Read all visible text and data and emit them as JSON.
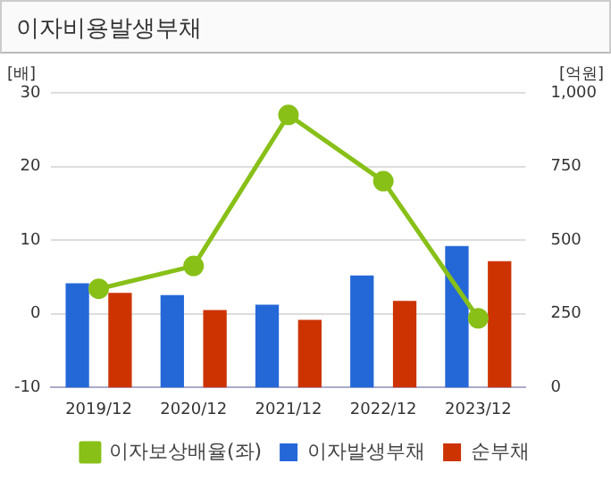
{
  "chart_data": {
    "type": "bar",
    "title": "이자비용발생부채",
    "ylabel": "[배]",
    "y2label": "[억원]",
    "categories": [
      "2019/12",
      "2020/12",
      "2021/12",
      "2022/12",
      "2023/12"
    ],
    "series": [
      {
        "name": "이자발생부채",
        "color": "#2468d8",
        "axis": "y2",
        "values": [
          354,
          314,
          281,
          380,
          480
        ]
      },
      {
        "name": "순부채",
        "color": "#cc3300",
        "axis": "y2",
        "values": [
          321,
          263,
          230,
          294,
          429
        ]
      },
      {
        "name": "이자보상배율(좌)",
        "type": "line",
        "color": "#88c018",
        "axis": "y",
        "marker": "circle",
        "values": [
          3.4,
          6.5,
          27.0,
          18.0,
          -0.6
        ]
      }
    ],
    "ylim": [
      -10,
      30
    ],
    "yticks": [
      -10,
      0,
      10,
      20,
      30
    ],
    "y2lim": [
      0,
      1000
    ],
    "y2ticks": [
      0,
      250,
      500,
      750,
      {
        "value": 1000,
        "label": "1,000"
      }
    ],
    "grid": "y",
    "legend": "bottom"
  }
}
